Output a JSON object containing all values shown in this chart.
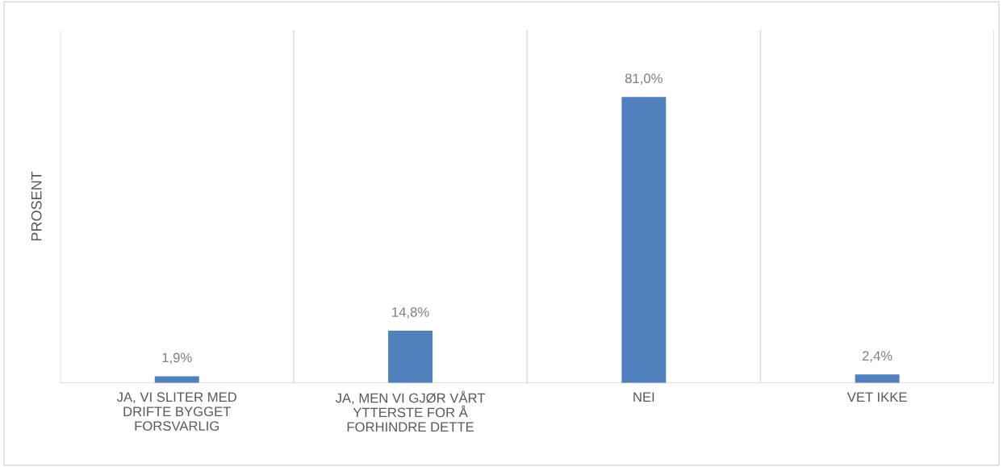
{
  "chart_data": {
    "type": "bar",
    "ylabel": "PROSENT",
    "categories": [
      "JA, VI SLITER MED\nDRIFTE BYGGET\nFORSVARLIG",
      "JA, MEN VI GJØR VÅRT\nYTTERSTE FOR Å\nFORHINDRE DETTE",
      "NEI",
      "VET IKKE"
    ],
    "values": [
      1.9,
      14.8,
      81.0,
      2.4
    ],
    "value_labels": [
      "1,9%",
      "14,8%",
      "81,0%",
      "2,4%"
    ],
    "color": "#4f81bd",
    "ylim": [
      0,
      100
    ],
    "grid": "x",
    "tick_labels": "x"
  }
}
